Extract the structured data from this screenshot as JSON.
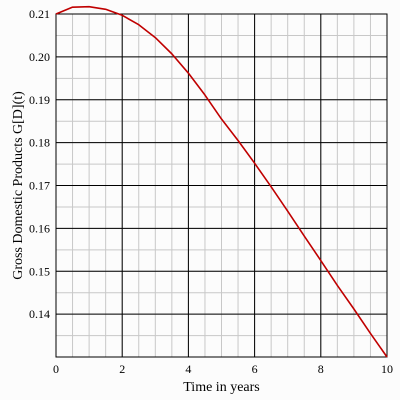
{
  "chart_data": {
    "type": "line",
    "title": "",
    "xlabel": "Time in years",
    "ylabel": "Gross Domestic Products G[D](t)",
    "xlim": [
      0,
      10
    ],
    "ylim": [
      0.13,
      0.21
    ],
    "x_ticks": [
      "0",
      "2",
      "4",
      "6",
      "8",
      "10"
    ],
    "y_ticks": [
      "0.14",
      "0.15",
      "0.16",
      "0.17",
      "0.18",
      "0.19",
      "0.20",
      "0.21"
    ],
    "grid": true,
    "series": [
      {
        "color": "#c00000",
        "x": [
          0,
          0.5,
          1,
          1.5,
          2,
          2.5,
          3,
          3.5,
          4,
          4.5,
          5,
          5.5,
          6,
          6.5,
          7,
          7.5,
          8,
          8.5,
          9,
          9.5,
          10
        ],
        "y": [
          0.21,
          0.2116,
          0.2117,
          0.2111,
          0.2097,
          0.2075,
          0.2045,
          0.2007,
          0.1962,
          0.1911,
          0.1855,
          0.1805,
          0.1752,
          0.1697,
          0.164,
          0.1582,
          0.1525,
          0.1467,
          0.1412,
          0.1355,
          0.13
        ]
      }
    ]
  }
}
